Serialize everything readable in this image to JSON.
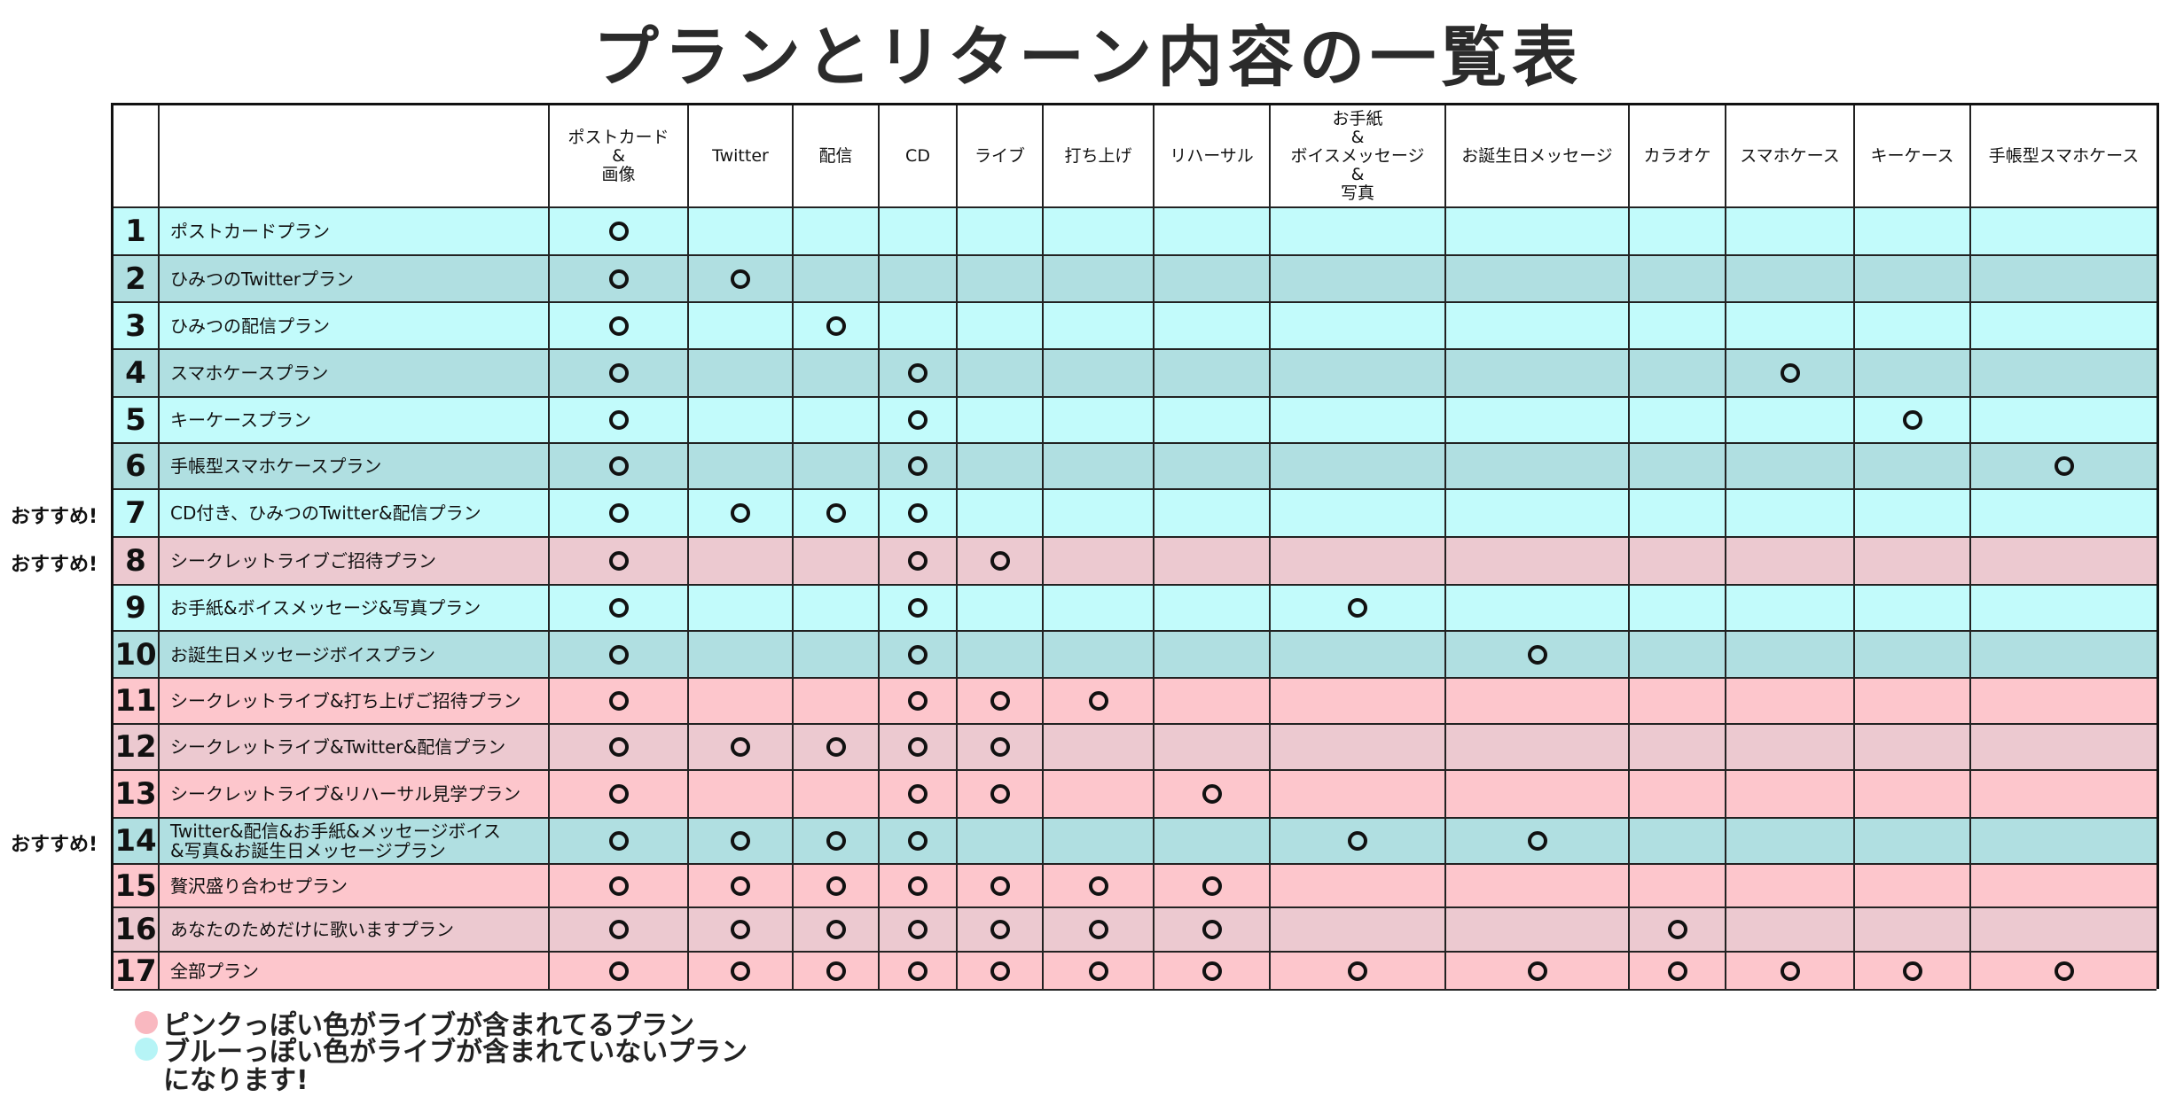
{
  "title": "プランとリターン内容の一覧表",
  "colors": {
    "pink": "#fdc6cc",
    "mauve": "#ecc9d0",
    "cyan": "#c2fbfb",
    "teal": "#b0dfe1",
    "legend_pink": "#f9b8c0",
    "legend_blue": "#b6f4f6"
  },
  "columns": [
    "ポストカード\n&\n画像",
    "Twitter",
    "配信",
    "CD",
    "ライブ",
    "打ち上げ",
    "リハーサル",
    "お手紙\n&\nボイスメッセージ\n&\n写真",
    "お誕生日メッセージ",
    "カラオケ",
    "スマホケース",
    "キーケース",
    "手帳型スマホケース"
  ],
  "rows": [
    {
      "num": "1",
      "plan": "ポストカードプラン",
      "bg": "cyan",
      "marks": [
        0
      ]
    },
    {
      "num": "2",
      "plan": "ひみつのTwitterプラン",
      "bg": "teal",
      "marks": [
        0,
        1
      ]
    },
    {
      "num": "3",
      "plan": "ひみつの配信プラン",
      "bg": "cyan",
      "marks": [
        0,
        2
      ]
    },
    {
      "num": "4",
      "plan": "スマホケースプラン",
      "bg": "teal",
      "marks": [
        0,
        3,
        10
      ]
    },
    {
      "num": "5",
      "plan": "キーケースプラン",
      "bg": "cyan",
      "marks": [
        0,
        3,
        11
      ]
    },
    {
      "num": "6",
      "plan": "手帳型スマホケースプラン",
      "bg": "teal",
      "marks": [
        0,
        3,
        12
      ]
    },
    {
      "num": "7",
      "plan": "CD付き、ひみつのTwitter&配信プラン",
      "bg": "cyan",
      "marks": [
        0,
        1,
        2,
        3
      ],
      "recommend": "おすすめ!"
    },
    {
      "num": "8",
      "plan": "シークレットライブご招待プラン",
      "bg": "mauve",
      "marks": [
        0,
        3,
        4
      ],
      "recommend": "おすすめ!"
    },
    {
      "num": "9",
      "plan": "お手紙&ボイスメッセージ&写真プラン",
      "bg": "cyan",
      "marks": [
        0,
        3,
        7
      ]
    },
    {
      "num": "10",
      "plan": "お誕生日メッセージボイスプラン",
      "bg": "teal",
      "marks": [
        0,
        3,
        8
      ]
    },
    {
      "num": "11",
      "plan": "シークレットライブ&打ち上げご招待プラン",
      "bg": "pink",
      "marks": [
        0,
        3,
        4,
        5
      ]
    },
    {
      "num": "12",
      "plan": "シークレットライブ&Twitter&配信プラン",
      "bg": "mauve",
      "marks": [
        0,
        1,
        2,
        3,
        4
      ]
    },
    {
      "num": "13",
      "plan": "シークレットライブ&リハーサル見学プラン",
      "bg": "pink",
      "marks": [
        0,
        3,
        4,
        6
      ]
    },
    {
      "num": "14",
      "plan": "Twitter&配信&お手紙&メッセージボイス\n&写真&お誕生日メッセージプラン",
      "bg": "teal",
      "marks": [
        0,
        1,
        2,
        3,
        7,
        8
      ],
      "recommend": "おすすめ!"
    },
    {
      "num": "15",
      "plan": "贅沢盛り合わせプラン",
      "bg": "pink",
      "marks": [
        0,
        1,
        2,
        3,
        4,
        5,
        6
      ]
    },
    {
      "num": "16",
      "plan": "あなたのためだけに歌いますプラン",
      "bg": "mauve",
      "marks": [
        0,
        1,
        2,
        3,
        4,
        5,
        6,
        9
      ]
    },
    {
      "num": "17",
      "plan": "全部プラン",
      "bg": "pink",
      "marks": [
        0,
        1,
        2,
        3,
        4,
        5,
        6,
        7,
        8,
        9,
        10,
        11,
        12
      ]
    }
  ],
  "legend": {
    "pink_text": "ピンクっぽい色がライブが含まれてるプラン",
    "blue_text": "ブルーっぽい色がライブが含まれていないプラン",
    "note": "になります!"
  }
}
